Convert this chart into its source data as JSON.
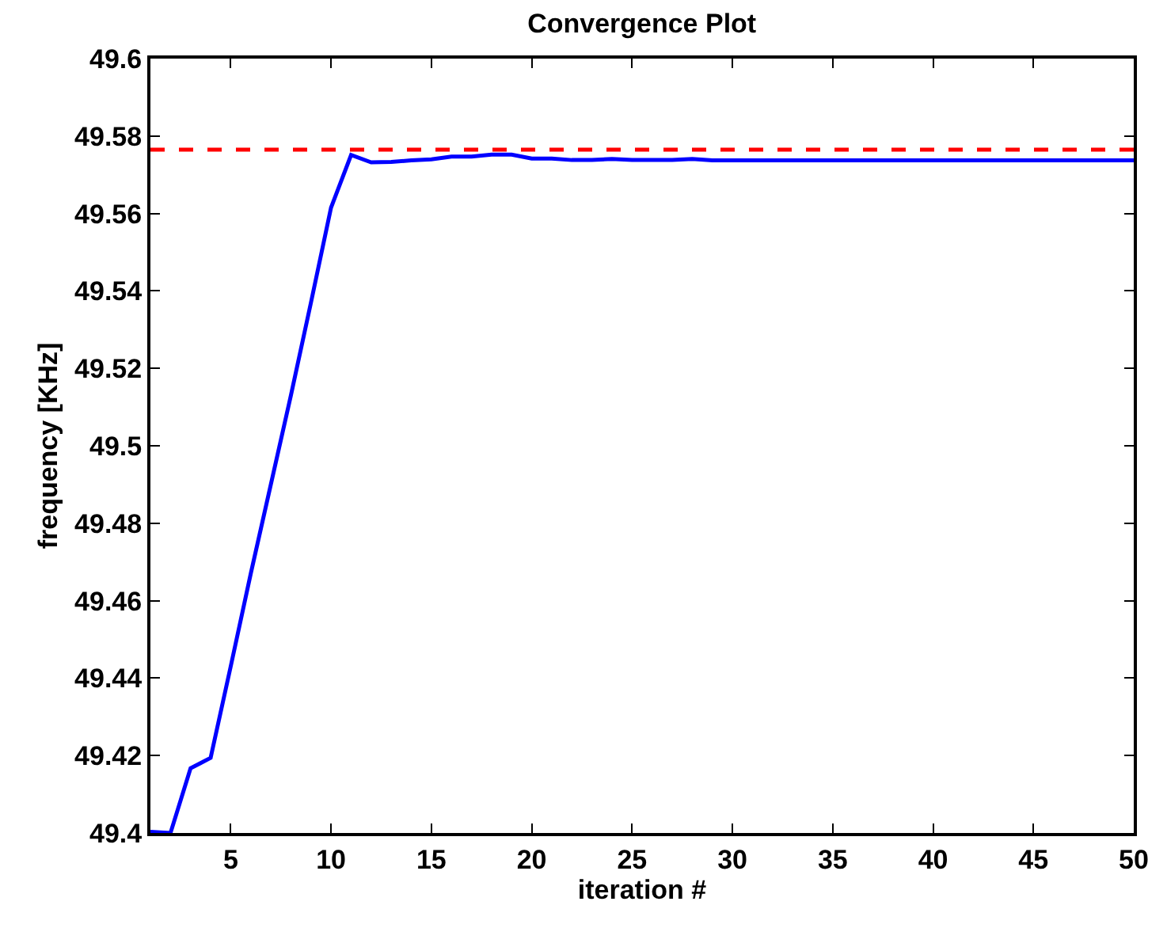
{
  "chart_data": {
    "type": "line",
    "title": "Convergence Plot",
    "xlabel": "iteration #",
    "ylabel": "frequency [KHz]",
    "x": [
      1,
      2,
      3,
      4,
      5,
      6,
      7,
      8,
      9,
      10,
      11,
      12,
      13,
      14,
      15,
      16,
      17,
      18,
      19,
      20,
      21,
      22,
      23,
      24,
      25,
      26,
      27,
      28,
      29,
      30,
      31,
      32,
      33,
      34,
      35,
      36,
      37,
      38,
      39,
      40,
      41,
      42,
      43,
      44,
      45,
      46,
      47,
      48,
      49,
      50
    ],
    "series": [
      {
        "color": "#0000ff",
        "values": [
          49.4003,
          49.4,
          49.4167,
          49.4194,
          49.443,
          49.467,
          49.49,
          49.513,
          49.537,
          49.5615,
          49.5751,
          49.5732,
          49.5733,
          49.5737,
          49.574,
          49.5747,
          49.5747,
          49.5752,
          49.5752,
          49.5742,
          49.5742,
          49.5738,
          49.5738,
          49.5741,
          49.5738,
          49.5738,
          49.5738,
          49.5741,
          49.5737,
          49.5737,
          49.5737,
          49.5737,
          49.5737,
          49.5737,
          49.5737,
          49.5737,
          49.5737,
          49.5737,
          49.5737,
          49.5737,
          49.5737,
          49.5737,
          49.5737,
          49.5737,
          49.5737,
          49.5737,
          49.5737,
          49.5737,
          49.5737,
          49.5737
        ]
      }
    ],
    "xlim": [
      1,
      50
    ],
    "xticks": [
      5,
      10,
      15,
      20,
      25,
      30,
      35,
      40,
      45,
      50
    ],
    "ylim": [
      49.4,
      49.6
    ],
    "yticks": [
      49.4,
      49.42,
      49.44,
      49.46,
      49.48,
      49.5,
      49.52,
      49.54,
      49.56,
      49.58,
      49.6
    ],
    "ref_lines": [
      {
        "axis": "y",
        "value": 49.5765,
        "color": "#ff0000",
        "line_style": "dashed"
      }
    ],
    "marker": "none",
    "line_style": "solid"
  }
}
